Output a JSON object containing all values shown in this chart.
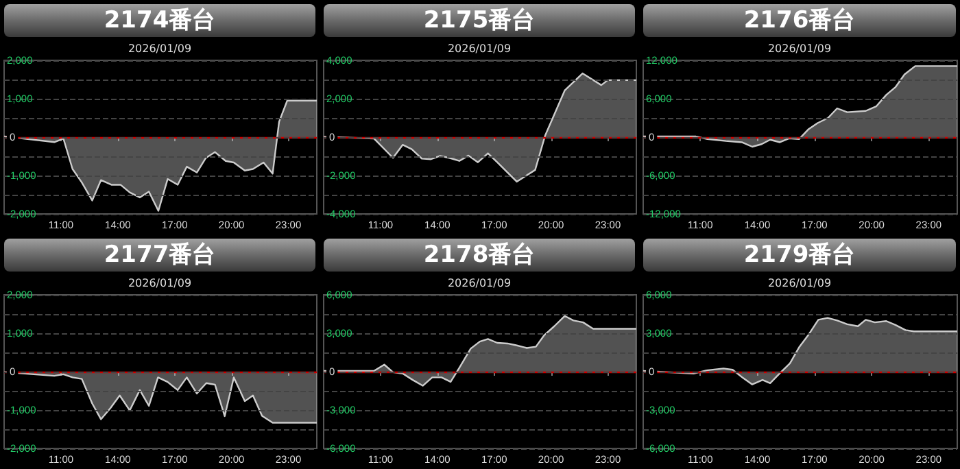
{
  "chart_data": [
    {
      "type": "area",
      "title": "2174番台",
      "subtitle": "2026/01/09",
      "xlim": [
        8,
        24.5
      ],
      "xticks": [
        {
          "value": 11,
          "label": "11:00"
        },
        {
          "value": 14,
          "label": "14:00"
        },
        {
          "value": 17,
          "label": "17:00"
        },
        {
          "value": 20,
          "label": "20:00"
        },
        {
          "value": 23,
          "label": "23:00"
        }
      ],
      "ylim": [
        -2000,
        2000
      ],
      "yticks": [
        {
          "value": -2000,
          "label": "-2,000"
        },
        {
          "value": -1500,
          "label": null
        },
        {
          "value": -1000,
          "label": "-1,000"
        },
        {
          "value": -500,
          "label": null
        },
        {
          "value": 0,
          "label": "0"
        },
        {
          "value": 500,
          "label": null
        },
        {
          "value": 1000,
          "label": "1,000"
        },
        {
          "value": 1500,
          "label": null
        },
        {
          "value": 2000,
          "label": "2,000"
        }
      ],
      "grid": "y",
      "marker": "none",
      "line_style": "solid",
      "ref_lines": [
        {
          "axis": "y",
          "value": 0,
          "color": "#cc0000"
        }
      ],
      "series": [
        {
          "color": "#cccccc",
          "x": [
            8,
            10.65,
            11.13,
            11.61,
            12.1,
            12.65,
            13.11,
            13.66,
            14.14,
            14.63,
            15.16,
            15.64,
            16.14,
            16.63,
            17.16,
            17.64,
            18.17,
            18.65,
            19.13,
            19.69,
            20.12,
            20.7,
            21.13,
            21.69,
            22.17,
            22.51,
            22.94,
            24.5
          ],
          "values": [
            20,
            -130,
            -40,
            -830,
            -1180,
            -1650,
            -1120,
            -1240,
            -1240,
            -1440,
            -1570,
            -1420,
            -1920,
            -1090,
            -1240,
            -770,
            -920,
            -540,
            -390,
            -620,
            -660,
            -870,
            -830,
            -660,
            -950,
            400,
            950,
            950
          ]
        }
      ]
    },
    {
      "type": "area",
      "title": "2175番台",
      "subtitle": "2026/01/09",
      "xlim": [
        8,
        24.5
      ],
      "xticks": [
        {
          "value": 11,
          "label": "11:00"
        },
        {
          "value": 14,
          "label": "14:00"
        },
        {
          "value": 17,
          "label": "17:00"
        },
        {
          "value": 20,
          "label": "20:00"
        },
        {
          "value": 23,
          "label": "23:00"
        }
      ],
      "ylim": [
        -4000,
        4000
      ],
      "yticks": [
        {
          "value": -4000,
          "label": "-4,000"
        },
        {
          "value": -3000,
          "label": null
        },
        {
          "value": -2000,
          "label": "-2,000"
        },
        {
          "value": -1000,
          "label": null
        },
        {
          "value": 0,
          "label": "0"
        },
        {
          "value": 1000,
          "label": null
        },
        {
          "value": 2000,
          "label": "2,000"
        },
        {
          "value": 3000,
          "label": null
        },
        {
          "value": 4000,
          "label": "4,000"
        }
      ],
      "grid": "y",
      "marker": "none",
      "line_style": "solid",
      "ref_lines": [
        {
          "axis": "y",
          "value": 0,
          "color": "#cc0000"
        }
      ],
      "series": [
        {
          "color": "#cccccc",
          "x": [
            8,
            10.65,
            11.66,
            12.17,
            12.65,
            13.18,
            13.66,
            14.14,
            14.63,
            15.16,
            15.64,
            16.14,
            16.67,
            17.16,
            18.19,
            19.16,
            19.69,
            20.72,
            21.66,
            22.65,
            22.99,
            24.5
          ],
          "values": [
            20,
            -70,
            -1080,
            -400,
            -630,
            -1120,
            -1150,
            -980,
            -1080,
            -1240,
            -960,
            -1310,
            -840,
            -1310,
            -2320,
            -1710,
            90,
            2430,
            3320,
            2710,
            2970,
            2970
          ]
        }
      ]
    },
    {
      "type": "area",
      "title": "2176番台",
      "subtitle": "2026/01/09",
      "xlim": [
        8,
        24.5
      ],
      "xticks": [
        {
          "value": 11,
          "label": "11:00"
        },
        {
          "value": 14,
          "label": "14:00"
        },
        {
          "value": 17,
          "label": "17:00"
        },
        {
          "value": 20,
          "label": "20:00"
        },
        {
          "value": 23,
          "label": "23:00"
        }
      ],
      "ylim": [
        -12000,
        12000
      ],
      "yticks": [
        {
          "value": -12000,
          "label": "-12,000"
        },
        {
          "value": -9000,
          "label": null
        },
        {
          "value": -6000,
          "label": "-6,000"
        },
        {
          "value": -3000,
          "label": null
        },
        {
          "value": 0,
          "label": "0"
        },
        {
          "value": 3000,
          "label": null
        },
        {
          "value": 6000,
          "label": "6,000"
        },
        {
          "value": 9000,
          "label": null
        },
        {
          "value": 12000,
          "label": "12,000"
        }
      ],
      "grid": "y",
      "marker": "none",
      "line_style": "solid",
      "ref_lines": [
        {
          "axis": "y",
          "value": 0,
          "color": "#cc0000"
        }
      ],
      "series": [
        {
          "color": "#cccccc",
          "x": [
            8,
            10.77,
            11.37,
            12.34,
            13.18,
            13.73,
            14.22,
            14.67,
            15.18,
            15.66,
            16.19,
            16.67,
            17.16,
            17.71,
            18.19,
            18.72,
            19.69,
            20.24,
            20.77,
            21.25,
            21.73,
            22.29,
            24.5
          ],
          "values": [
            100,
            100,
            -300,
            -600,
            -800,
            -1500,
            -1100,
            -400,
            -800,
            -200,
            -300,
            1200,
            2200,
            3000,
            4500,
            3900,
            4100,
            4800,
            6600,
            7800,
            9800,
            11100,
            11100
          ]
        }
      ]
    },
    {
      "type": "area",
      "title": "2177番台",
      "subtitle": "2026/01/09",
      "xlim": [
        8,
        24.5
      ],
      "xticks": [
        {
          "value": 11,
          "label": "11:00"
        },
        {
          "value": 14,
          "label": "14:00"
        },
        {
          "value": 17,
          "label": "17:00"
        },
        {
          "value": 20,
          "label": "20:00"
        },
        {
          "value": 23,
          "label": "23:00"
        }
      ],
      "ylim": [
        -2000,
        2000
      ],
      "yticks": [
        {
          "value": -2000,
          "label": "-2,000"
        },
        {
          "value": -1500,
          "label": null
        },
        {
          "value": -1000,
          "label": "-1,000"
        },
        {
          "value": -500,
          "label": null
        },
        {
          "value": 0,
          "label": "0"
        },
        {
          "value": 500,
          "label": null
        },
        {
          "value": 1000,
          "label": "1,000"
        },
        {
          "value": 1500,
          "label": null
        },
        {
          "value": 2000,
          "label": "2,000"
        }
      ],
      "grid": "y",
      "marker": "none",
      "line_style": "solid",
      "ref_lines": [
        {
          "axis": "y",
          "value": 0,
          "color": "#cc0000"
        }
      ],
      "series": [
        {
          "color": "#cccccc",
          "x": [
            8,
            10.65,
            11.13,
            11.61,
            12.1,
            12.65,
            13.11,
            13.61,
            14.1,
            14.63,
            15.16,
            15.64,
            16.12,
            16.63,
            17.16,
            17.64,
            18.17,
            18.67,
            19.13,
            19.64,
            20.12,
            20.7,
            21.13,
            21.61,
            22.17,
            24.5
          ],
          "values": [
            -10,
            -110,
            -70,
            -150,
            -190,
            -830,
            -1240,
            -950,
            -620,
            -1010,
            -480,
            -890,
            -150,
            -270,
            -480,
            -150,
            -570,
            -300,
            -340,
            -1160,
            -150,
            -770,
            -620,
            -1150,
            -1330,
            -1330
          ]
        }
      ]
    },
    {
      "type": "area",
      "title": "2178番台",
      "subtitle": "2026/01/09",
      "xlim": [
        8,
        24.5
      ],
      "xticks": [
        {
          "value": 11,
          "label": "11:00"
        },
        {
          "value": 14,
          "label": "14:00"
        },
        {
          "value": 17,
          "label": "17:00"
        },
        {
          "value": 20,
          "label": "20:00"
        },
        {
          "value": 23,
          "label": "23:00"
        }
      ],
      "ylim": [
        -6000,
        6000
      ],
      "yticks": [
        {
          "value": -6000,
          "label": "-6,000"
        },
        {
          "value": -4500,
          "label": null
        },
        {
          "value": -3000,
          "label": "-3,000"
        },
        {
          "value": -1500,
          "label": null
        },
        {
          "value": 0,
          "label": "0"
        },
        {
          "value": 1500,
          "label": null
        },
        {
          "value": 3000,
          "label": "3,000"
        },
        {
          "value": 4500,
          "label": null
        },
        {
          "value": 6000,
          "label": "6,000"
        }
      ],
      "grid": "y",
      "marker": "none",
      "line_style": "solid",
      "ref_lines": [
        {
          "axis": "y",
          "value": 0,
          "color": "#cc0000"
        }
      ],
      "series": [
        {
          "color": "#cccccc",
          "x": [
            8,
            10.65,
            11.2,
            11.66,
            12.17,
            12.7,
            13.23,
            13.73,
            14.22,
            14.7,
            15.16,
            15.76,
            16.24,
            16.67,
            17.16,
            17.71,
            18.19,
            18.72,
            19.2,
            19.64,
            20.17,
            20.72,
            21.18,
            21.69,
            22.22,
            24.5
          ],
          "values": [
            50,
            50,
            550,
            -50,
            -150,
            -650,
            -1100,
            -450,
            -450,
            -800,
            300,
            1800,
            2350,
            2550,
            2250,
            2200,
            2050,
            1850,
            1950,
            2850,
            3550,
            4350,
            4000,
            3850,
            3350,
            3350
          ]
        }
      ]
    },
    {
      "type": "area",
      "title": "2179番台",
      "subtitle": "2026/01/09",
      "xlim": [
        8,
        24.5
      ],
      "xticks": [
        {
          "value": 11,
          "label": "11:00"
        },
        {
          "value": 14,
          "label": "14:00"
        },
        {
          "value": 17,
          "label": "17:00"
        },
        {
          "value": 20,
          "label": "20:00"
        },
        {
          "value": 23,
          "label": "23:00"
        }
      ],
      "ylim": [
        -6000,
        6000
      ],
      "yticks": [
        {
          "value": -6000,
          "label": "-6,000"
        },
        {
          "value": -4500,
          "label": null
        },
        {
          "value": -3000,
          "label": "-3,000"
        },
        {
          "value": -1500,
          "label": null
        },
        {
          "value": 0,
          "label": "0"
        },
        {
          "value": 1500,
          "label": null
        },
        {
          "value": 3000,
          "label": "3,000"
        },
        {
          "value": 4500,
          "label": null
        },
        {
          "value": 6000,
          "label": "6,000"
        }
      ],
      "grid": "y",
      "marker": "none",
      "line_style": "solid",
      "ref_lines": [
        {
          "axis": "y",
          "value": 0,
          "color": "#cc0000"
        }
      ],
      "series": [
        {
          "color": "#cccccc",
          "x": [
            8,
            10.65,
            11.33,
            12.22,
            12.7,
            13.25,
            13.73,
            14.27,
            14.67,
            15.23,
            15.71,
            16.19,
            16.67,
            17.2,
            17.69,
            18.19,
            18.72,
            19.28,
            19.69,
            20.17,
            20.77,
            21.25,
            21.78,
            22.22,
            24.5
          ],
          "values": [
            50,
            -150,
            100,
            250,
            150,
            -500,
            -1000,
            -650,
            -900,
            -50,
            650,
            1900,
            2850,
            4050,
            4200,
            4000,
            3700,
            3550,
            4050,
            3850,
            3950,
            3650,
            3250,
            3150,
            3150
          ]
        }
      ]
    }
  ]
}
